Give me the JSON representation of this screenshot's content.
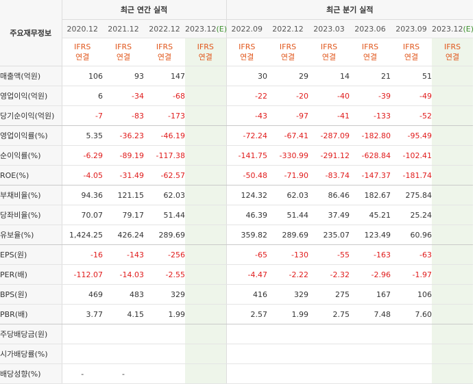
{
  "table": {
    "corner_label": "주요재무정보",
    "annual_group": "최근 연간 실적",
    "quarter_group": "최근 분기 실적",
    "annual_periods": [
      "2020.12",
      "2021.12",
      "2022.12",
      "2023.12"
    ],
    "annual_est_mark": "(E)",
    "quarter_periods": [
      "2022.09",
      "2022.12",
      "2023.03",
      "2023.06",
      "2023.09",
      "2023.12"
    ],
    "quarter_est_mark": "(E)",
    "basis_line1": "IFRS",
    "basis_line2": "연결",
    "rows": [
      {
        "label": "매출액(억원)",
        "values": [
          "106",
          "93",
          "147",
          "",
          "30",
          "29",
          "14",
          "21",
          "51",
          ""
        ]
      },
      {
        "label": "영업이익(억원)",
        "values": [
          "6",
          "-34",
          "-68",
          "",
          "-22",
          "-20",
          "-40",
          "-39",
          "-49",
          ""
        ]
      },
      {
        "label": "당기순이익(억원)",
        "values": [
          "-7",
          "-83",
          "-173",
          "",
          "-43",
          "-97",
          "-41",
          "-133",
          "-52",
          ""
        ]
      },
      {
        "label": "영업이익률(%)",
        "values": [
          "5.35",
          "-36.23",
          "-46.19",
          "",
          "-72.24",
          "-67.41",
          "-287.09",
          "-182.80",
          "-95.49",
          ""
        ]
      },
      {
        "label": "순이익률(%)",
        "values": [
          "-6.29",
          "-89.19",
          "-117.38",
          "",
          "-141.75",
          "-330.99",
          "-291.12",
          "-628.84",
          "-102.41",
          ""
        ]
      },
      {
        "label": "ROE(%)",
        "values": [
          "-4.05",
          "-31.49",
          "-62.57",
          "",
          "-50.48",
          "-71.90",
          "-83.74",
          "-147.37",
          "-181.74",
          ""
        ]
      },
      {
        "label": "부채비율(%)",
        "values": [
          "94.36",
          "121.15",
          "62.03",
          "",
          "124.32",
          "62.03",
          "86.46",
          "182.67",
          "275.84",
          ""
        ]
      },
      {
        "label": "당좌비율(%)",
        "values": [
          "70.07",
          "79.17",
          "51.44",
          "",
          "46.39",
          "51.44",
          "37.49",
          "45.21",
          "25.24",
          ""
        ]
      },
      {
        "label": "유보율(%)",
        "values": [
          "1,424.25",
          "426.24",
          "289.69",
          "",
          "359.82",
          "289.69",
          "235.07",
          "123.49",
          "60.96",
          ""
        ]
      },
      {
        "label": "EPS(원)",
        "values": [
          "-16",
          "-143",
          "-256",
          "",
          "-65",
          "-130",
          "-55",
          "-163",
          "-63",
          ""
        ]
      },
      {
        "label": "PER(배)",
        "values": [
          "-112.07",
          "-14.03",
          "-2.55",
          "",
          "-4.47",
          "-2.22",
          "-2.32",
          "-2.96",
          "-1.97",
          ""
        ]
      },
      {
        "label": "BPS(원)",
        "values": [
          "469",
          "483",
          "329",
          "",
          "416",
          "329",
          "275",
          "167",
          "106",
          ""
        ]
      },
      {
        "label": "PBR(배)",
        "values": [
          "3.77",
          "4.15",
          "1.99",
          "",
          "2.57",
          "1.99",
          "2.75",
          "7.48",
          "7.60",
          ""
        ]
      },
      {
        "label": "주당배당금(원)",
        "values": [
          "",
          "",
          "",
          "",
          "",
          "",
          "",
          "",
          "",
          ""
        ]
      },
      {
        "label": "시가배당률(%)",
        "values": [
          "",
          "",
          "",
          "",
          "",
          "",
          "",
          "",
          "",
          ""
        ]
      },
      {
        "label": "배당성향(%)",
        "values": [
          "-",
          "-",
          "",
          "",
          "",
          "",
          "",
          "",
          "",
          ""
        ]
      }
    ]
  },
  "colors": {
    "negative": "#e01b1b",
    "basis_label": "#e0561b",
    "estimate_bg": "#eef5ea",
    "header_bg": "#f7f7f7"
  }
}
